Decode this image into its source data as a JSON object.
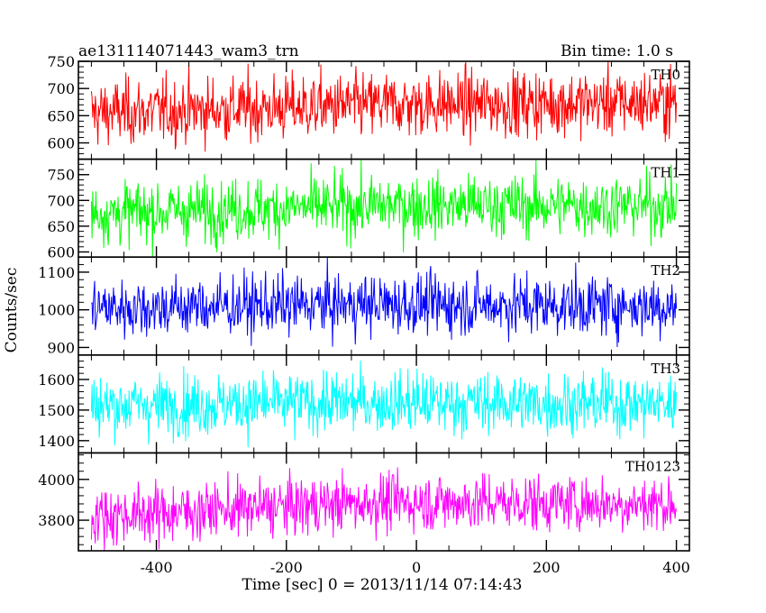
{
  "chart_data": {
    "type": "line",
    "title": "ae131114071443_wam3_trn",
    "subtitle": "Bin time: 1.0 s",
    "xlabel": "Time [sec] 0 = 2013/11/14 07:14:43",
    "ylabel": "Counts/sec",
    "xlim": [
      -520,
      420
    ],
    "x_data_range": [
      -500,
      400
    ],
    "x_step": 1,
    "xticks": [
      -400,
      -200,
      0,
      200,
      400
    ],
    "series": [
      {
        "name": "TH0",
        "color": "#ff0000",
        "ylim": [
          570,
          750
        ],
        "yticks": [
          600,
          650,
          700,
          750
        ],
        "mean": 665,
        "noise": 30,
        "trend": [
          655,
          670,
          675
        ]
      },
      {
        "name": "TH1",
        "color": "#00ff00",
        "ylim": [
          590,
          780
        ],
        "yticks": [
          600,
          650,
          700,
          750
        ],
        "mean": 685,
        "noise": 30,
        "trend": [
          675,
          690,
          690
        ]
      },
      {
        "name": "TH2",
        "color": "#0000ff",
        "ylim": [
          880,
          1140
        ],
        "yticks": [
          900,
          1000,
          1100
        ],
        "mean": 1010,
        "noise": 40,
        "trend": [
          1005,
          1015,
          1010
        ]
      },
      {
        "name": "TH3",
        "color": "#00ffff",
        "ylim": [
          1360,
          1680
        ],
        "yticks": [
          1400,
          1500,
          1600
        ],
        "mean": 1520,
        "noise": 50,
        "trend": [
          1515,
          1525,
          1520
        ]
      },
      {
        "name": "TH0123",
        "color": "#ff00ff",
        "ylim": [
          3650,
          4130
        ],
        "yticks": [
          3800,
          4000
        ],
        "mean": 3880,
        "noise": 70,
        "trend": [
          3820,
          3890,
          3880
        ]
      }
    ]
  }
}
